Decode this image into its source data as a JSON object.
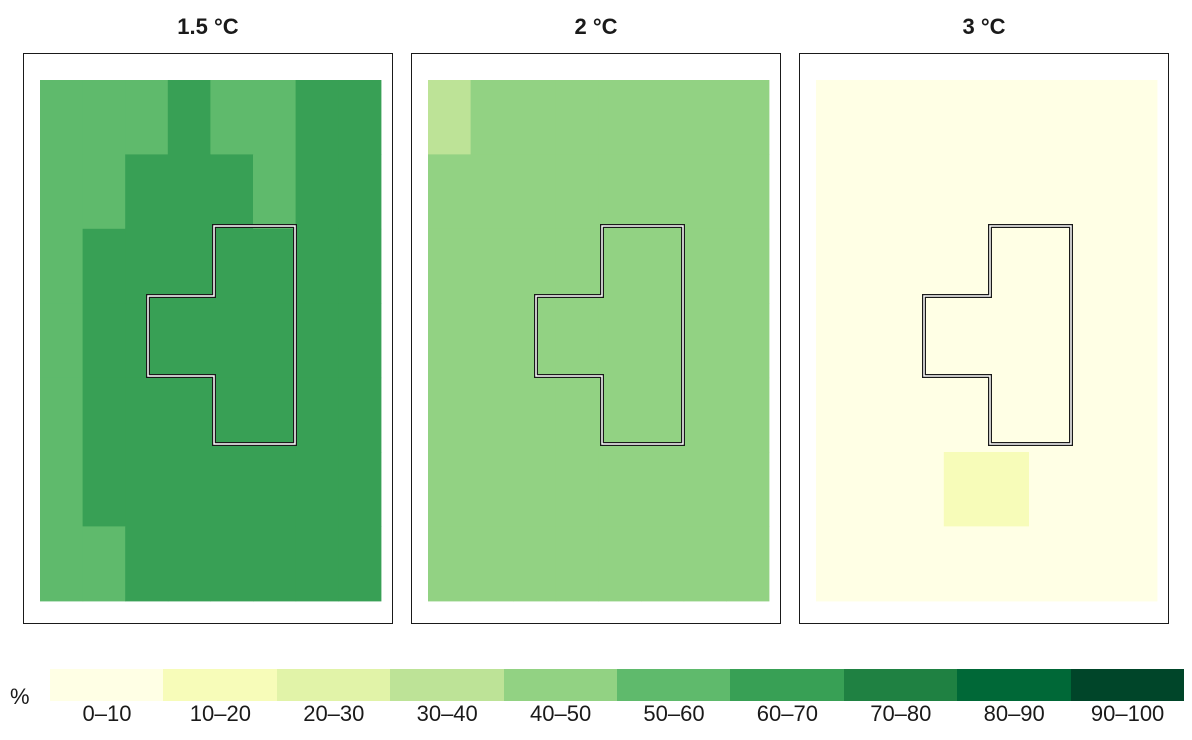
{
  "panels": [
    {
      "title": "1.5 °C",
      "grid": [
        [
          "50-60",
          "50-60",
          "50-60",
          "60-70",
          "50-60",
          "50-60",
          "60-70",
          "60-70"
        ],
        [
          "50-60",
          "50-60",
          "60-70",
          "60-70",
          "60-70",
          "50-60",
          "60-70",
          "60-70"
        ],
        [
          "50-60",
          "60-70",
          "60-70",
          "60-70",
          "60-70",
          "60-70",
          "60-70",
          "60-70"
        ],
        [
          "50-60",
          "60-70",
          "60-70",
          "60-70",
          "60-70",
          "60-70",
          "60-70",
          "60-70"
        ],
        [
          "50-60",
          "60-70",
          "60-70",
          "60-70",
          "60-70",
          "60-70",
          "60-70",
          "60-70"
        ],
        [
          "50-60",
          "60-70",
          "60-70",
          "60-70",
          "60-70",
          "60-70",
          "60-70",
          "60-70"
        ],
        [
          "50-60",
          "50-60",
          "60-70",
          "60-70",
          "60-70",
          "60-70",
          "60-70",
          "60-70"
        ]
      ]
    },
    {
      "title": "2 °C",
      "grid": [
        [
          "30-40",
          "40-50",
          "40-50",
          "40-50",
          "40-50",
          "40-50",
          "40-50",
          "40-50"
        ],
        [
          "40-50",
          "40-50",
          "40-50",
          "40-50",
          "40-50",
          "40-50",
          "40-50",
          "40-50"
        ],
        [
          "40-50",
          "40-50",
          "40-50",
          "40-50",
          "40-50",
          "40-50",
          "40-50",
          "40-50"
        ],
        [
          "40-50",
          "40-50",
          "40-50",
          "40-50",
          "40-50",
          "40-50",
          "40-50",
          "40-50"
        ],
        [
          "40-50",
          "40-50",
          "40-50",
          "40-50",
          "40-50",
          "40-50",
          "40-50",
          "40-50"
        ],
        [
          "40-50",
          "40-50",
          "40-50",
          "40-50",
          "40-50",
          "40-50",
          "40-50",
          "40-50"
        ],
        [
          "40-50",
          "40-50",
          "40-50",
          "40-50",
          "40-50",
          "40-50",
          "40-50",
          "40-50"
        ]
      ]
    },
    {
      "title": "3 °C",
      "grid": [
        [
          "0-10",
          "0-10",
          "0-10",
          "0-10",
          "0-10",
          "0-10",
          "0-10",
          "0-10"
        ],
        [
          "0-10",
          "0-10",
          "0-10",
          "0-10",
          "0-10",
          "0-10",
          "0-10",
          "0-10"
        ],
        [
          "0-10",
          "0-10",
          "0-10",
          "0-10",
          "0-10",
          "0-10",
          "0-10",
          "0-10"
        ],
        [
          "0-10",
          "0-10",
          "0-10",
          "0-10",
          "0-10",
          "0-10",
          "0-10",
          "0-10"
        ],
        [
          "0-10",
          "0-10",
          "0-10",
          "0-10",
          "0-10",
          "0-10",
          "0-10",
          "0-10"
        ],
        [
          "0-10",
          "0-10",
          "0-10",
          "10-20",
          "10-20",
          "0-10",
          "0-10",
          "0-10"
        ],
        [
          "0-10",
          "0-10",
          "0-10",
          "0-10",
          "0-10",
          "0-10",
          "0-10",
          "0-10"
        ]
      ]
    }
  ],
  "legend": {
    "unit": "%",
    "classes": [
      {
        "key": "0-10",
        "label": "0–10",
        "color": "#ffffe5"
      },
      {
        "key": "10-20",
        "label": "10–20",
        "color": "#f7fcb9"
      },
      {
        "key": "20-30",
        "label": "20–30",
        "color": "#e1f3a8"
      },
      {
        "key": "30-40",
        "label": "30–40",
        "color": "#bde397"
      },
      {
        "key": "40-50",
        "label": "40–50",
        "color": "#92d283"
      },
      {
        "key": "50-60",
        "label": "50–60",
        "color": "#5fba6c"
      },
      {
        "key": "60-70",
        "label": "60–70",
        "color": "#38a055"
      },
      {
        "key": "70-80",
        "label": "70–80",
        "color": "#1f8142"
      },
      {
        "key": "80-90",
        "label": "80–90",
        "color": "#006837"
      },
      {
        "key": "90-100",
        "label": "90–100",
        "color": "#004529"
      }
    ]
  }
}
